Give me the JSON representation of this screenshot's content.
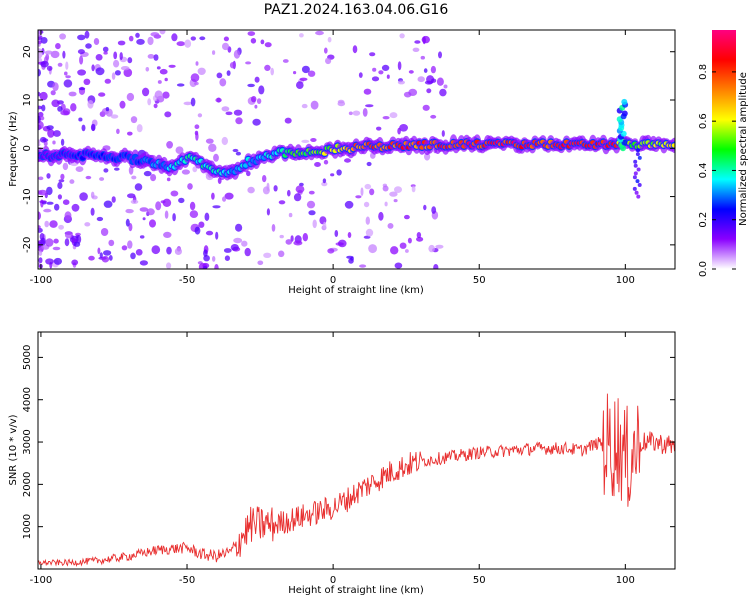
{
  "title": "PAZ1.2024.163.04.06.G16",
  "chart_data": [
    {
      "type": "heatmap",
      "xlabel": "Height of straight line (km)",
      "ylabel": "Frequency (Hz)",
      "xlim": [
        -101,
        117
      ],
      "ylim": [
        -25,
        24.5
      ],
      "xticks": [
        -100,
        -50,
        0,
        50,
        100
      ],
      "yticks": [
        -20,
        -10,
        0,
        10,
        20
      ],
      "xtick_labels": [
        "-100",
        "-50",
        "0",
        "50",
        "100"
      ],
      "ytick_labels": [
        "-20",
        "-10",
        "0",
        "10",
        "20"
      ],
      "colorbar": {
        "label": "Normalized spectral amplitude",
        "range": [
          0,
          0.97
        ],
        "ticks": [
          0,
          0.2,
          0.4,
          0.6,
          0.8
        ],
        "tick_labels": [
          "0.0",
          "0.2",
          "0.4",
          "0.6",
          "0.8"
        ],
        "colormap": [
          "#ffffff",
          "#8a00ff",
          "#0000ff",
          "#00ffff",
          "#00ff00",
          "#ffff00",
          "#ff8000",
          "#ff0000",
          "#ff0080"
        ]
      },
      "ridge": {
        "x": [
          -100,
          -90,
          -80,
          -70,
          -60,
          -55,
          -50,
          -45,
          -40,
          -35,
          -30,
          -25,
          -20,
          -15,
          -10,
          -5,
          0,
          5,
          10,
          20,
          30,
          40,
          50,
          60,
          70,
          80,
          90,
          95,
          98,
          100,
          102,
          105,
          110,
          117
        ],
        "freq": [
          -1.5,
          -1.5,
          -1.5,
          -2,
          -3,
          -4,
          -2,
          -3,
          -5,
          -5,
          -3,
          -2,
          -1,
          -1,
          -1,
          -1,
          0,
          0,
          0.3,
          0.5,
          0.7,
          0.8,
          0.8,
          0.8,
          0.8,
          0.8,
          0.8,
          0.9,
          0.8,
          1,
          0.5,
          0.5,
          0.8,
          0.8
        ],
        "amplitude": [
          0.15,
          0.2,
          0.25,
          0.25,
          0.3,
          0.35,
          0.4,
          0.4,
          0.4,
          0.35,
          0.35,
          0.35,
          0.4,
          0.45,
          0.5,
          0.55,
          0.6,
          0.7,
          0.75,
          0.8,
          0.8,
          0.85,
          0.85,
          0.85,
          0.85,
          0.85,
          0.85,
          0.9,
          0.7,
          0.6,
          0.5,
          0.55,
          0.6,
          0.6
        ]
      }
    },
    {
      "type": "line",
      "xlabel": "Height of straight line (km)",
      "ylabel": "SNR (10 * v/v)",
      "xlim": [
        -101,
        117
      ],
      "ylim": [
        0,
        5600
      ],
      "xticks": [
        -100,
        -50,
        0,
        50,
        100
      ],
      "yticks": [
        1000,
        2000,
        3000,
        4000,
        5000
      ],
      "xtick_labels": [
        "-100",
        "-50",
        "0",
        "50",
        "100"
      ],
      "ytick_labels": [
        "1000",
        "2000",
        "3000",
        "4000",
        "5000"
      ],
      "line_color": "#e83030",
      "series": [
        {
          "x": [
            -100,
            -90,
            -80,
            -70,
            -60,
            -50,
            -45,
            -40,
            -35,
            -32,
            -28,
            -25,
            -20,
            -15,
            -10,
            -5,
            0,
            5,
            10,
            15,
            20,
            25,
            30,
            35,
            40,
            50,
            60,
            70,
            80,
            85,
            88,
            92,
            95,
            98,
            100,
            102,
            105,
            110,
            117
          ],
          "y": [
            150,
            150,
            200,
            300,
            450,
            500,
            350,
            300,
            400,
            700,
            1050,
            1050,
            1050,
            1150,
            1250,
            1350,
            1450,
            1650,
            1900,
            2100,
            2300,
            2450,
            2550,
            2600,
            2650,
            2750,
            2800,
            2850,
            2850,
            2800,
            2900,
            3000,
            2900,
            3000,
            2500,
            2700,
            3000,
            3000,
            2900
          ]
        }
      ]
    }
  ]
}
